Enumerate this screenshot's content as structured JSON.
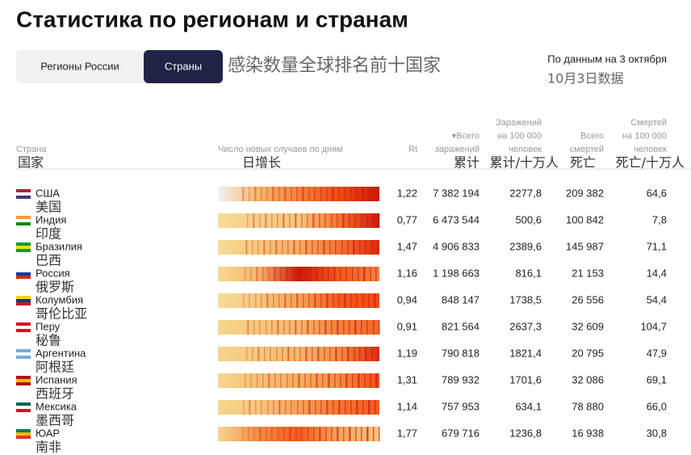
{
  "title": "Статистика по регионам и странам",
  "tabs": [
    "Регионы России",
    "Страны"
  ],
  "annotation": "感染数量全球排名前十国家",
  "date": "По данным на 3 октября",
  "date_cn": "10月3日数据",
  "columns": [
    {
      "label": [
        "Страна"
      ],
      "cn": "国家"
    },
    {
      "label": [
        "Число новых случаев по дням"
      ],
      "cn": "日增长"
    },
    {
      "label": [
        "Rt"
      ]
    },
    {
      "label": [
        "▾Всего",
        "заражений"
      ],
      "cn": "累计"
    },
    {
      "label": [
        "Заражений",
        "на 100 000",
        "человек"
      ],
      "cn": "累计/十万人"
    },
    {
      "label": [
        "Всего",
        "смертей"
      ],
      "cn": "死亡"
    },
    {
      "label": [
        "Смертей",
        "на 100 000",
        "человек"
      ],
      "cn": "死亡/十万人"
    }
  ],
  "rows": [
    [
      "США",
      "美国",
      "1,22",
      "7 382 194",
      "2277,8",
      "209 382",
      "64,6"
    ],
    [
      "Индия",
      "印度",
      "0,77",
      "6 473 544",
      "500,6",
      "100 842",
      "7,8"
    ],
    [
      "Бразилия",
      "巴西",
      "1,47",
      "4 906 833",
      "2389,6",
      "145 987",
      "71,1"
    ],
    [
      "Россия",
      "俄罗斯",
      "1,16",
      "1 198 663",
      "816,1",
      "21 153",
      "14,4"
    ],
    [
      "Колумбия",
      "哥伦比亚",
      "0,94",
      "848 147",
      "1738,5",
      "26 556",
      "54,4"
    ],
    [
      "Перу",
      "秘鲁",
      "0,91",
      "821 564",
      "2637,3",
      "32 609",
      "104,7"
    ],
    [
      "Аргентина",
      "阿根廷",
      "1,19",
      "790 818",
      "1821,4",
      "20 795",
      "47,9"
    ],
    [
      "Испания",
      "西班牙",
      "1,31",
      "789 932",
      "1701,6",
      "32 086",
      "69,1"
    ],
    [
      "Мексика",
      "墨西哥",
      "1,14",
      "757 953",
      "634,1",
      "78 880",
      "66,0"
    ],
    [
      "ЮАР",
      "南非",
      "1,77",
      "679 716",
      "1236,8",
      "16 938",
      "30,8"
    ]
  ]
}
